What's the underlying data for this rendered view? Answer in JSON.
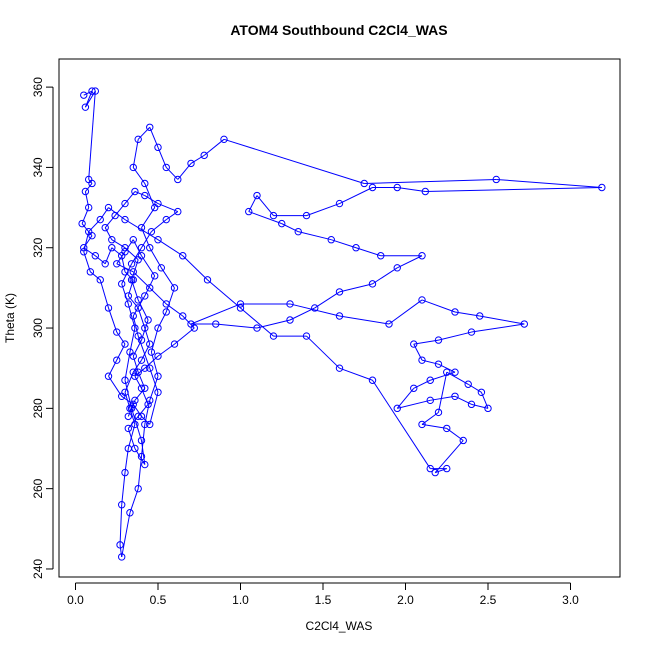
{
  "chart_data": {
    "type": "scatter",
    "title": "ATOM4 Southbound C2Cl4_WAS",
    "xlabel": "C2Cl4_WAS",
    "ylabel": "Theta (K)",
    "xlim": [
      -0.1,
      3.3
    ],
    "ylim": [
      238,
      367
    ],
    "xticks": [
      0.0,
      0.5,
      1.0,
      1.5,
      2.0,
      2.5,
      3.0
    ],
    "xtick_labels": [
      "0.0",
      "0.5",
      "1.0",
      "1.5",
      "2.0",
      "2.5",
      "3.0"
    ],
    "yticks": [
      240,
      260,
      280,
      300,
      320,
      340,
      360
    ],
    "ytick_labels": [
      "240",
      "260",
      "280",
      "300",
      "320",
      "340",
      "360"
    ],
    "grid": false,
    "series": [
      {
        "color": "#0000ff",
        "marker": "open-circle",
        "connected": true,
        "points": [
          [
            0.05,
            358
          ],
          [
            0.1,
            359
          ],
          [
            0.06,
            355
          ],
          [
            0.12,
            359
          ],
          [
            0.08,
            337
          ],
          [
            0.1,
            336
          ],
          [
            0.06,
            334
          ],
          [
            0.08,
            330
          ],
          [
            0.04,
            326
          ],
          [
            0.1,
            323
          ],
          [
            0.05,
            320
          ],
          [
            0.12,
            318
          ],
          [
            0.18,
            316
          ],
          [
            0.22,
            320
          ],
          [
            0.28,
            318
          ],
          [
            0.3,
            314
          ],
          [
            0.35,
            312
          ],
          [
            0.32,
            308
          ],
          [
            0.38,
            305
          ],
          [
            0.42,
            300
          ],
          [
            0.45,
            296
          ],
          [
            0.4,
            292
          ],
          [
            0.35,
            289
          ],
          [
            0.3,
            284
          ],
          [
            0.33,
            280
          ],
          [
            0.36,
            276
          ],
          [
            0.32,
            270
          ],
          [
            0.3,
            264
          ],
          [
            0.28,
            256
          ],
          [
            0.27,
            246
          ],
          [
            0.28,
            243
          ],
          [
            0.33,
            254
          ],
          [
            0.38,
            260
          ],
          [
            0.4,
            268
          ],
          [
            0.42,
            276
          ],
          [
            0.45,
            282
          ],
          [
            0.5,
            288
          ],
          [
            0.46,
            294
          ],
          [
            0.5,
            300
          ],
          [
            0.55,
            304
          ],
          [
            0.6,
            310
          ],
          [
            0.52,
            315
          ],
          [
            0.45,
            320
          ],
          [
            0.4,
            325
          ],
          [
            0.48,
            330
          ],
          [
            0.42,
            336
          ],
          [
            0.35,
            340
          ],
          [
            0.38,
            347
          ],
          [
            0.45,
            350
          ],
          [
            0.5,
            345
          ],
          [
            0.55,
            340
          ],
          [
            0.62,
            337
          ],
          [
            0.7,
            341
          ],
          [
            0.78,
            343
          ],
          [
            0.9,
            347
          ],
          [
            1.75,
            336
          ],
          [
            2.55,
            337
          ],
          [
            3.19,
            335
          ],
          [
            2.12,
            334
          ],
          [
            1.95,
            335
          ],
          [
            1.8,
            335
          ],
          [
            1.6,
            331
          ],
          [
            1.4,
            328
          ],
          [
            1.2,
            328
          ],
          [
            1.1,
            333
          ],
          [
            1.05,
            329
          ],
          [
            1.25,
            326
          ],
          [
            1.35,
            324
          ],
          [
            1.55,
            322
          ],
          [
            1.7,
            320
          ],
          [
            1.85,
            318
          ],
          [
            2.1,
            318
          ],
          [
            1.95,
            315
          ],
          [
            1.8,
            311
          ],
          [
            1.6,
            309
          ],
          [
            1.45,
            305
          ],
          [
            1.3,
            302
          ],
          [
            1.1,
            300
          ],
          [
            0.85,
            301
          ],
          [
            0.7,
            301
          ],
          [
            1.0,
            306
          ],
          [
            1.3,
            306
          ],
          [
            1.6,
            303
          ],
          [
            1.9,
            301
          ],
          [
            2.1,
            307
          ],
          [
            2.3,
            304
          ],
          [
            2.45,
            303
          ],
          [
            2.72,
            301
          ],
          [
            2.4,
            299
          ],
          [
            2.2,
            297
          ],
          [
            2.05,
            296
          ],
          [
            2.1,
            292
          ],
          [
            2.2,
            291
          ],
          [
            2.3,
            289
          ],
          [
            2.15,
            287
          ],
          [
            2.05,
            285
          ],
          [
            1.95,
            280
          ],
          [
            2.15,
            282
          ],
          [
            2.3,
            283
          ],
          [
            2.4,
            281
          ],
          [
            2.5,
            280
          ],
          [
            2.46,
            284
          ],
          [
            2.38,
            286
          ],
          [
            2.25,
            289
          ],
          [
            2.2,
            279
          ],
          [
            2.1,
            276
          ],
          [
            2.25,
            275
          ],
          [
            2.35,
            272
          ],
          [
            2.18,
            264
          ],
          [
            2.25,
            265
          ],
          [
            2.15,
            265
          ],
          [
            1.8,
            287
          ],
          [
            1.6,
            290
          ],
          [
            1.4,
            298
          ],
          [
            1.2,
            298
          ],
          [
            1.0,
            305
          ],
          [
            0.8,
            312
          ],
          [
            0.65,
            318
          ],
          [
            0.5,
            322
          ],
          [
            0.3,
            327
          ],
          [
            0.2,
            330
          ],
          [
            0.15,
            327
          ],
          [
            0.08,
            324
          ],
          [
            0.05,
            319
          ],
          [
            0.09,
            314
          ],
          [
            0.15,
            312
          ],
          [
            0.2,
            305
          ],
          [
            0.25,
            299
          ],
          [
            0.3,
            296
          ],
          [
            0.25,
            292
          ],
          [
            0.2,
            288
          ],
          [
            0.28,
            283
          ],
          [
            0.35,
            281
          ],
          [
            0.4,
            278
          ],
          [
            0.45,
            276
          ],
          [
            0.5,
            284
          ],
          [
            0.45,
            290
          ],
          [
            0.38,
            298
          ],
          [
            0.35,
            303
          ],
          [
            0.42,
            308
          ],
          [
            0.48,
            313
          ],
          [
            0.4,
            318
          ],
          [
            0.35,
            322
          ],
          [
            0.3,
            319
          ],
          [
            0.25,
            316
          ],
          [
            0.35,
            314
          ],
          [
            0.45,
            310
          ],
          [
            0.55,
            306
          ],
          [
            0.65,
            303
          ],
          [
            0.72,
            300
          ],
          [
            0.6,
            296
          ],
          [
            0.5,
            293
          ],
          [
            0.42,
            290
          ],
          [
            0.36,
            288
          ],
          [
            0.4,
            285
          ],
          [
            0.44,
            281
          ],
          [
            0.38,
            278
          ],
          [
            0.32,
            275
          ],
          [
            0.36,
            270
          ],
          [
            0.42,
            266
          ],
          [
            0.4,
            272
          ],
          [
            0.34,
            280
          ],
          [
            0.3,
            287
          ],
          [
            0.33,
            294
          ],
          [
            0.36,
            300
          ],
          [
            0.32,
            306
          ],
          [
            0.28,
            311
          ],
          [
            0.34,
            316
          ],
          [
            0.4,
            320
          ],
          [
            0.46,
            324
          ],
          [
            0.55,
            327
          ],
          [
            0.62,
            329
          ],
          [
            0.5,
            331
          ],
          [
            0.42,
            333
          ],
          [
            0.36,
            334
          ],
          [
            0.3,
            331
          ],
          [
            0.24,
            328
          ],
          [
            0.18,
            325
          ],
          [
            0.22,
            322
          ],
          [
            0.3,
            320
          ],
          [
            0.38,
            317
          ],
          [
            0.34,
            312
          ],
          [
            0.38,
            307
          ],
          [
            0.44,
            302
          ],
          [
            0.4,
            297
          ],
          [
            0.35,
            293
          ],
          [
            0.38,
            289
          ],
          [
            0.42,
            285
          ],
          [
            0.36,
            282
          ],
          [
            0.32,
            278
          ]
        ]
      }
    ]
  }
}
